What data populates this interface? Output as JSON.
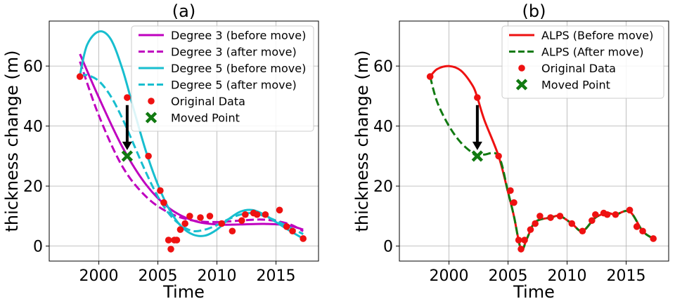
{
  "chart_data": [
    {
      "panel": "(a)",
      "type": "line",
      "title": "(a)",
      "xlabel": "Time",
      "ylabel": "thickness change (m)",
      "xlim": [
        1995.8,
        2018.6
      ],
      "ylim": [
        -5,
        75
      ],
      "xticks": [
        2000,
        2005,
        2010,
        2015
      ],
      "yticks": [
        0,
        20,
        40,
        60
      ],
      "grid": true,
      "legend_position": "top-right",
      "series": [
        {
          "name": "Degree 3 (before move)",
          "kind": "line",
          "color": "#bf00bf",
          "dash": "solid",
          "x": [
            1998.4,
            2000,
            2002,
            2004,
            2006,
            2008,
            2010,
            2012,
            2014,
            2016,
            2017.3
          ],
          "y": [
            64,
            49.5,
            33,
            20.5,
            12.5,
            8.5,
            7.2,
            7.2,
            7.4,
            6.9,
            5.5
          ]
        },
        {
          "name": "Degree 3 (after move)",
          "kind": "line",
          "color": "#bf00bf",
          "dash": "dashed",
          "x": [
            1998.4,
            2000,
            2002,
            2004,
            2006,
            2008,
            2010,
            2012,
            2014,
            2016,
            2017.3
          ],
          "y": [
            61.5,
            43.5,
            26.5,
            16.5,
            11,
            8.5,
            8,
            8.5,
            8.8,
            7.5,
            5
          ]
        },
        {
          "name": "Degree 5 (before move)",
          "kind": "line",
          "color": "#17becf",
          "dash": "solid",
          "x": [
            1998.4,
            1999,
            2000,
            2001,
            2002,
            2003,
            2004,
            2005,
            2006,
            2007,
            2008,
            2009,
            2010,
            2011,
            2012,
            2013,
            2014,
            2015,
            2016,
            2017.3
          ],
          "y": [
            57,
            67,
            71.5,
            69,
            59,
            45,
            31.5,
            20.5,
            12,
            6.5,
            3.8,
            3.5,
            5.5,
            9,
            11.5,
            12,
            10.5,
            8,
            5.5,
            2.5
          ]
        },
        {
          "name": "Degree 5 (after move)",
          "kind": "line",
          "color": "#17becf",
          "dash": "dashed",
          "x": [
            1998.4,
            1999,
            2000,
            2001,
            2002,
            2003,
            2004,
            2005,
            2006,
            2007,
            2008,
            2009,
            2010,
            2011,
            2012,
            2013,
            2014,
            2015,
            2016,
            2017.3
          ],
          "y": [
            56.5,
            57,
            55,
            50,
            42.5,
            33.5,
            24.5,
            16.5,
            10.5,
            6.8,
            5,
            5.5,
            7,
            9,
            10.5,
            11,
            10,
            8.5,
            6.5,
            4
          ]
        },
        {
          "name": "Original Data",
          "kind": "scatter",
          "color": "#ee1111",
          "marker": "circle",
          "x": [
            1998.4,
            2002.4,
            2004.2,
            2005.2,
            2005.5,
            2005.9,
            2006.1,
            2006.4,
            2006.6,
            2006.9,
            2007.3,
            2007.7,
            2008.6,
            2009.4,
            2010.4,
            2011.3,
            2012.1,
            2012.4,
            2013.1,
            2013.4,
            2014.1,
            2015.3,
            2015.9,
            2016.4,
            2017.3
          ],
          "y": [
            56.5,
            49.5,
            30,
            18.5,
            14.5,
            2,
            -1,
            2,
            2,
            5.5,
            7.5,
            10,
            9.5,
            10,
            7.5,
            5,
            8.5,
            10.5,
            11,
            10.5,
            10.5,
            12,
            6.5,
            5,
            2.5
          ]
        },
        {
          "name": "Moved Point",
          "kind": "scatter",
          "color": "#117a11",
          "marker": "x",
          "x": [
            2002.4
          ],
          "y": [
            30
          ]
        }
      ],
      "arrow": {
        "x": 2002.4,
        "from_y": 47,
        "to_y": 32
      }
    },
    {
      "panel": "(b)",
      "type": "line",
      "title": "(b)",
      "xlabel": "Time",
      "ylabel": "thickness change (m)",
      "xlim": [
        1995.8,
        2018.6
      ],
      "ylim": [
        -5,
        75
      ],
      "xticks": [
        2000,
        2005,
        2010,
        2015
      ],
      "yticks": [
        0,
        20,
        40,
        60
      ],
      "grid": true,
      "legend_position": "top-right",
      "series": [
        {
          "name": "ALPS (Before move)",
          "kind": "line",
          "color": "#ee1111",
          "dash": "solid",
          "x": [
            1998.4,
            1999,
            2000,
            2001,
            2002,
            2002.4,
            2003,
            2004.2,
            2005,
            2005.5,
            2006.1,
            2006.6,
            2007.3,
            2008.6,
            2009.4,
            2010.4,
            2011.3,
            2012.4,
            2013.4,
            2014.1,
            2015.3,
            2016.4,
            2017.3
          ],
          "y": [
            56.5,
            59,
            60,
            58.5,
            53.5,
            49.5,
            42,
            30,
            18,
            10,
            -1,
            2.5,
            8,
            9.5,
            10,
            7.5,
            5,
            9.5,
            11,
            10.5,
            11.5,
            5,
            2.5
          ]
        },
        {
          "name": "ALPS (After move)",
          "kind": "line",
          "color": "#117a11",
          "dash": "dashed",
          "x": [
            1998.4,
            1999,
            2000,
            2001,
            2002,
            2002.4,
            2003,
            2004.2,
            2005,
            2005.5,
            2006.1,
            2006.6,
            2007.3,
            2008.6,
            2009.4,
            2010.4,
            2011.3,
            2012.4,
            2013.4,
            2014.1,
            2015.3,
            2016.4,
            2017.3
          ],
          "y": [
            56.5,
            48,
            40,
            34.5,
            31,
            30,
            30.5,
            30,
            18,
            10,
            -1,
            2.5,
            8,
            9.5,
            10,
            7.5,
            5,
            9.5,
            11,
            10.5,
            11.5,
            5,
            2.5
          ]
        },
        {
          "name": "Original Data",
          "kind": "scatter",
          "color": "#ee1111",
          "marker": "circle",
          "x": [
            1998.4,
            2002.4,
            2004.2,
            2005.2,
            2005.5,
            2005.9,
            2006.1,
            2006.4,
            2006.9,
            2007.3,
            2007.7,
            2008.6,
            2009.4,
            2010.4,
            2011.3,
            2012.1,
            2012.4,
            2013.1,
            2013.4,
            2014.1,
            2015.3,
            2015.9,
            2016.4,
            2017.3
          ],
          "y": [
            56.5,
            49.5,
            30,
            18.5,
            14.5,
            2,
            -1,
            2,
            5.5,
            7.5,
            10,
            9.5,
            10,
            7.5,
            5,
            8.5,
            10.5,
            11,
            10.5,
            10.5,
            12,
            6.5,
            5,
            2.5
          ]
        },
        {
          "name": "Moved Point",
          "kind": "scatter",
          "color": "#117a11",
          "marker": "x",
          "x": [
            2002.4
          ],
          "y": [
            30
          ]
        }
      ],
      "arrow": {
        "x": 2002.4,
        "from_y": 47,
        "to_y": 32
      }
    }
  ]
}
